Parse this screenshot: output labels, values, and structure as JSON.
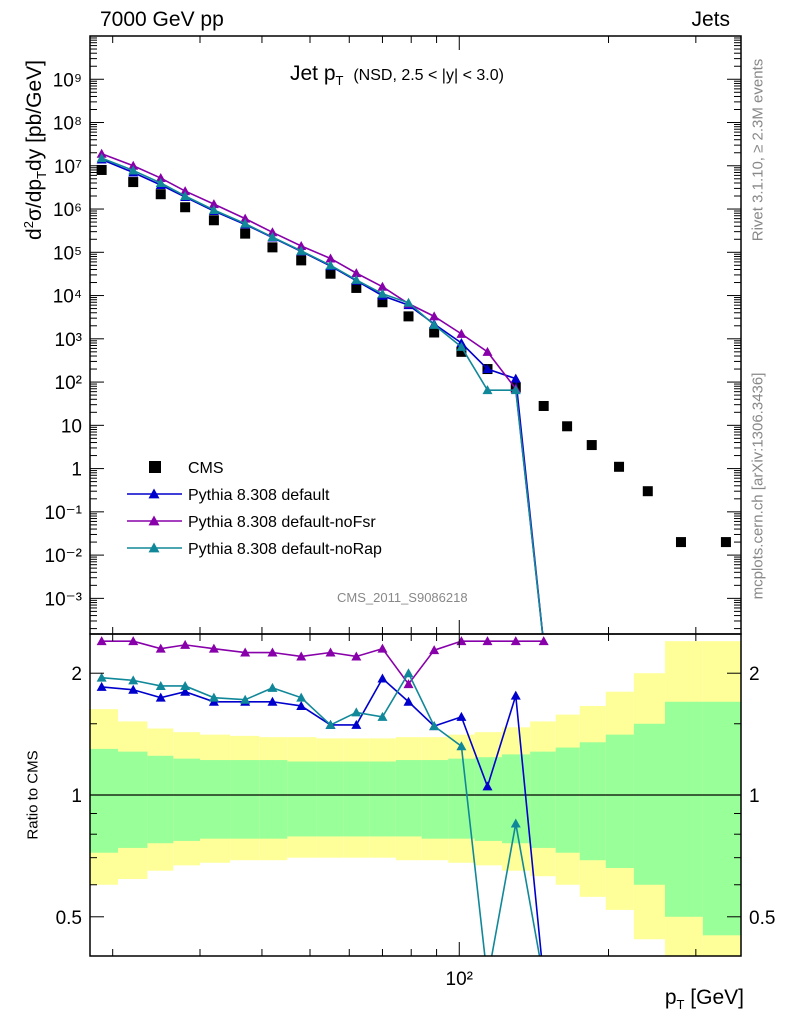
{
  "header": {
    "left": "7000 GeV pp",
    "right": "Jets"
  },
  "side_labels": {
    "rivet": "Rivet 3.1.10, ≥ 2.3M events",
    "mcplots": "mcplots.cern.ch [arXiv:1306.3436]"
  },
  "plot_title": {
    "main": "Jet p",
    "main_sub": "T",
    "condition": "(NSD, 2.5 < |y| < 3.0)"
  },
  "analysis_id": "CMS_2011_S9086218",
  "colors": {
    "cms": "#000000",
    "default": "#0000cc",
    "noFsr": "#8800aa",
    "noRap": "#118899",
    "band_inner": "#99ff99",
    "band_outer": "#ffff99"
  },
  "chart_data": [
    {
      "type": "scatter",
      "panel": "main",
      "ylabel": "d²σ/dp_T dy [pb/GeV]",
      "xlabel": "p_T [GeV]",
      "xscale": "log",
      "yscale": "log",
      "xlim": [
        18,
        370
      ],
      "ylim": [
        0.00015,
        10000000000
      ],
      "y_tick_labels": [
        "10⁻³",
        "10⁻²",
        "10⁻¹",
        "1",
        "10",
        "10²",
        "10³",
        "10⁴",
        "10⁵",
        "10⁶",
        "10⁷",
        "10⁸",
        "10⁹"
      ],
      "legend_position": "lower-left",
      "series": [
        {
          "name": "CMS",
          "marker": "square",
          "x": [
            19,
            22,
            25,
            28,
            32,
            37,
            42,
            48,
            55,
            62,
            70,
            79,
            89,
            101,
            114,
            130,
            148,
            165,
            185,
            210,
            240,
            280,
            345
          ],
          "y": [
            8000000,
            4200000,
            2200000,
            1100000,
            550000,
            270000,
            130000,
            65000,
            32000,
            15000,
            7000,
            3300,
            1400,
            500,
            200,
            75,
            28,
            9.5,
            3.5,
            1.1,
            0.3,
            0.02,
            0.02
          ]
        },
        {
          "name": "Pythia 8.308 default",
          "marker": "triangle",
          "x": [
            19,
            22,
            25,
            28,
            32,
            37,
            42,
            48,
            55,
            62,
            70,
            79,
            89,
            101,
            114,
            130,
            148,
            165
          ],
          "y": [
            14000000,
            7000000,
            3600000,
            1900000,
            900000,
            440000,
            220000,
            105000,
            48000,
            22000,
            9900,
            6000,
            2200,
            800,
            200,
            120,
            0,
            0
          ]
        },
        {
          "name": "Pythia 8.308 default-noFsr",
          "marker": "triangle",
          "x": [
            19,
            22,
            25,
            28,
            32,
            37,
            42,
            48,
            55,
            62,
            70,
            79,
            89,
            101,
            114,
            130,
            148,
            165
          ],
          "y": [
            19000000,
            10000000,
            5200000,
            2600000,
            1300000,
            600000,
            290000,
            140000,
            72000,
            33000,
            16000,
            6500,
            3300,
            1300,
            500,
            70,
            0,
            0
          ]
        },
        {
          "name": "Pythia 8.308 default-noRap",
          "marker": "triangle",
          "x": [
            19,
            22,
            25,
            28,
            32,
            37,
            42,
            48,
            55,
            62,
            70,
            79,
            89,
            101,
            114,
            130,
            148,
            165
          ],
          "y": [
            15000000,
            7800000,
            4000000,
            2000000,
            950000,
            460000,
            225000,
            108000,
            50000,
            23000,
            11000,
            6800,
            2100,
            650,
            65,
            65,
            0,
            0
          ]
        }
      ]
    },
    {
      "type": "line",
      "panel": "ratio",
      "ylabel": "Ratio to CMS",
      "xlabel": "p_T [GeV]",
      "xscale": "log",
      "yscale": "log",
      "ylim": [
        0.4,
        2.5
      ],
      "y_tick_labels": [
        "0.5",
        "1",
        "2"
      ],
      "x_tick_labels": [
        "10²"
      ],
      "series": [
        {
          "name": "Pythia 8.308 default",
          "x": [
            19,
            22,
            25,
            28,
            32,
            37,
            42,
            48,
            55,
            62,
            70,
            79,
            89,
            101,
            114,
            130,
            148
          ],
          "y": [
            1.85,
            1.82,
            1.74,
            1.8,
            1.7,
            1.7,
            1.7,
            1.66,
            1.49,
            1.49,
            1.94,
            1.7,
            1.48,
            1.56,
            1.05,
            1.76,
            0.35
          ]
        },
        {
          "name": "Pythia 8.308 default-noFsr",
          "x": [
            19,
            22,
            25,
            28,
            32,
            37,
            42,
            48,
            55,
            62,
            70,
            79,
            89,
            101,
            114,
            130,
            148
          ],
          "y": [
            2.4,
            2.4,
            2.3,
            2.35,
            2.3,
            2.25,
            2.25,
            2.2,
            2.25,
            2.2,
            2.3,
            1.88,
            2.28,
            2.4,
            2.4,
            2.4,
            2.4
          ]
        },
        {
          "name": "Pythia 8.308 default-noRap",
          "x": [
            19,
            22,
            25,
            28,
            32,
            37,
            42,
            48,
            55,
            62,
            70,
            79,
            89,
            101,
            114,
            130,
            148
          ],
          "y": [
            1.95,
            1.92,
            1.86,
            1.86,
            1.74,
            1.72,
            1.84,
            1.74,
            1.49,
            1.6,
            1.56,
            2.0,
            1.48,
            1.32,
            0.35,
            0.85,
            0.35
          ]
        }
      ],
      "bands": {
        "x_edges": [
          18,
          20.5,
          23.5,
          26.5,
          30,
          34.5,
          39.5,
          45,
          51.5,
          58.5,
          66,
          74.5,
          84,
          95,
          107.5,
          122,
          139,
          156.5,
          175,
          197.5,
          225,
          260,
          310,
          370
        ],
        "inner": [
          [
            0.72,
            1.3
          ],
          [
            0.74,
            1.28
          ],
          [
            0.76,
            1.25
          ],
          [
            0.77,
            1.23
          ],
          [
            0.78,
            1.22
          ],
          [
            0.78,
            1.22
          ],
          [
            0.78,
            1.22
          ],
          [
            0.79,
            1.21
          ],
          [
            0.79,
            1.21
          ],
          [
            0.79,
            1.21
          ],
          [
            0.79,
            1.21
          ],
          [
            0.79,
            1.22
          ],
          [
            0.78,
            1.22
          ],
          [
            0.78,
            1.23
          ],
          [
            0.77,
            1.24
          ],
          [
            0.76,
            1.26
          ],
          [
            0.74,
            1.28
          ],
          [
            0.72,
            1.31
          ],
          [
            0.69,
            1.35
          ],
          [
            0.66,
            1.41
          ],
          [
            0.6,
            1.5
          ],
          [
            0.5,
            1.7
          ],
          [
            0.45,
            1.7
          ]
        ],
        "outer": [
          [
            0.6,
            1.63
          ],
          [
            0.62,
            1.52
          ],
          [
            0.65,
            1.46
          ],
          [
            0.67,
            1.43
          ],
          [
            0.68,
            1.41
          ],
          [
            0.69,
            1.4
          ],
          [
            0.69,
            1.39
          ],
          [
            0.7,
            1.39
          ],
          [
            0.7,
            1.38
          ],
          [
            0.7,
            1.38
          ],
          [
            0.7,
            1.38
          ],
          [
            0.69,
            1.39
          ],
          [
            0.69,
            1.39
          ],
          [
            0.68,
            1.41
          ],
          [
            0.67,
            1.43
          ],
          [
            0.65,
            1.47
          ],
          [
            0.63,
            1.52
          ],
          [
            0.6,
            1.58
          ],
          [
            0.56,
            1.66
          ],
          [
            0.52,
            1.8
          ],
          [
            0.44,
            2.0
          ],
          [
            0.34,
            2.4
          ],
          [
            0.34,
            2.4
          ]
        ]
      }
    }
  ]
}
